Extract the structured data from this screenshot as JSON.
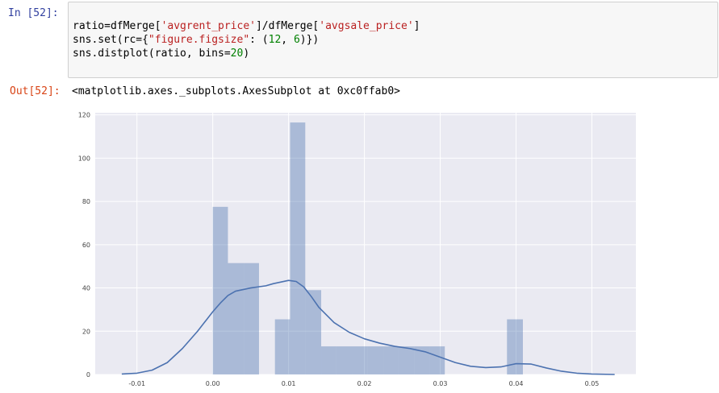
{
  "cell": {
    "in_prompt": "In [52]:",
    "out_prompt": "Out[52]:",
    "code_lines": [
      [
        {
          "t": "ratio=dfMerge[",
          "c": ""
        },
        {
          "t": "'avgrent_price'",
          "c": "str"
        },
        {
          "t": "]/dfMerge[",
          "c": ""
        },
        {
          "t": "'avgsale_price'",
          "c": "str"
        },
        {
          "t": "]",
          "c": ""
        }
      ],
      [
        {
          "t": "sns.set(rc={",
          "c": ""
        },
        {
          "t": "\"figure.figsize\"",
          "c": "str"
        },
        {
          "t": ": (",
          "c": ""
        },
        {
          "t": "12",
          "c": "num"
        },
        {
          "t": ", ",
          "c": ""
        },
        {
          "t": "6",
          "c": "num"
        },
        {
          "t": ")})",
          "c": ""
        }
      ],
      [
        {
          "t": "sns.distplot(ratio, bins=",
          "c": ""
        },
        {
          "t": "20",
          "c": "num"
        },
        {
          "t": ")",
          "c": ""
        }
      ]
    ],
    "output_text": "<matplotlib.axes._subplots.AxesSubplot at 0xc0ffab0>"
  },
  "colors": {
    "axes_bg": "#eaeaf2",
    "grid": "#ffffff",
    "bar_fill": "#4c72b0",
    "bar_alpha": 0.4,
    "kde_line": "#4c72b0",
    "tick_text": "#444444"
  },
  "chart_data": {
    "type": "bar",
    "style": "seaborn distplot (histogram + KDE)",
    "title": "",
    "xlabel": "",
    "ylabel": "",
    "xlim": [
      -0.0155,
      0.0558
    ],
    "ylim": [
      0,
      121
    ],
    "grid": true,
    "legend": "none",
    "xticks": [
      -0.01,
      0.0,
      0.01,
      0.02,
      0.03,
      0.04,
      0.05
    ],
    "xtick_labels": [
      "-0.01",
      "0.00",
      "0.01",
      "0.02",
      "0.03",
      "0.04",
      "0.05"
    ],
    "yticks": [
      0,
      20,
      40,
      60,
      80,
      100,
      120
    ],
    "ytick_labels": [
      "0",
      "20",
      "40",
      "60",
      "80",
      "100",
      "120"
    ],
    "histogram": {
      "bin_edges": [
        0.0,
        0.002,
        0.0041,
        0.0061,
        0.0082,
        0.0102,
        0.0122,
        0.0143,
        0.0163,
        0.0184,
        0.0204,
        0.0225,
        0.0245,
        0.0266,
        0.0286,
        0.0306,
        0.0327,
        0.0347,
        0.0368,
        0.0388,
        0.0409
      ],
      "counts": [
        77.5,
        51.5,
        51.5,
        0,
        25.5,
        116.5,
        39,
        13,
        13,
        13,
        13,
        13,
        13,
        13,
        13,
        0,
        0,
        0,
        0,
        25.5
      ]
    },
    "kde": {
      "x": [
        -0.012,
        -0.01,
        -0.008,
        -0.006,
        -0.004,
        -0.002,
        0.0,
        0.001,
        0.002,
        0.003,
        0.005,
        0.007,
        0.008,
        0.01,
        0.011,
        0.012,
        0.013,
        0.014,
        0.016,
        0.018,
        0.02,
        0.022,
        0.024,
        0.026,
        0.028,
        0.03,
        0.032,
        0.034,
        0.036,
        0.038,
        0.04,
        0.042,
        0.044,
        0.046,
        0.048,
        0.05,
        0.053
      ],
      "y": [
        0.2,
        0.6,
        2.0,
        5.5,
        12.0,
        20.0,
        29.0,
        33.0,
        36.5,
        38.5,
        40.0,
        41.0,
        42.0,
        43.5,
        43.0,
        40.5,
        36.0,
        31.0,
        24.0,
        19.5,
        16.5,
        14.5,
        13.0,
        12.0,
        10.5,
        8.0,
        5.5,
        3.8,
        3.2,
        3.5,
        5.0,
        4.8,
        3.0,
        1.5,
        0.6,
        0.2,
        0.0
      ]
    }
  }
}
